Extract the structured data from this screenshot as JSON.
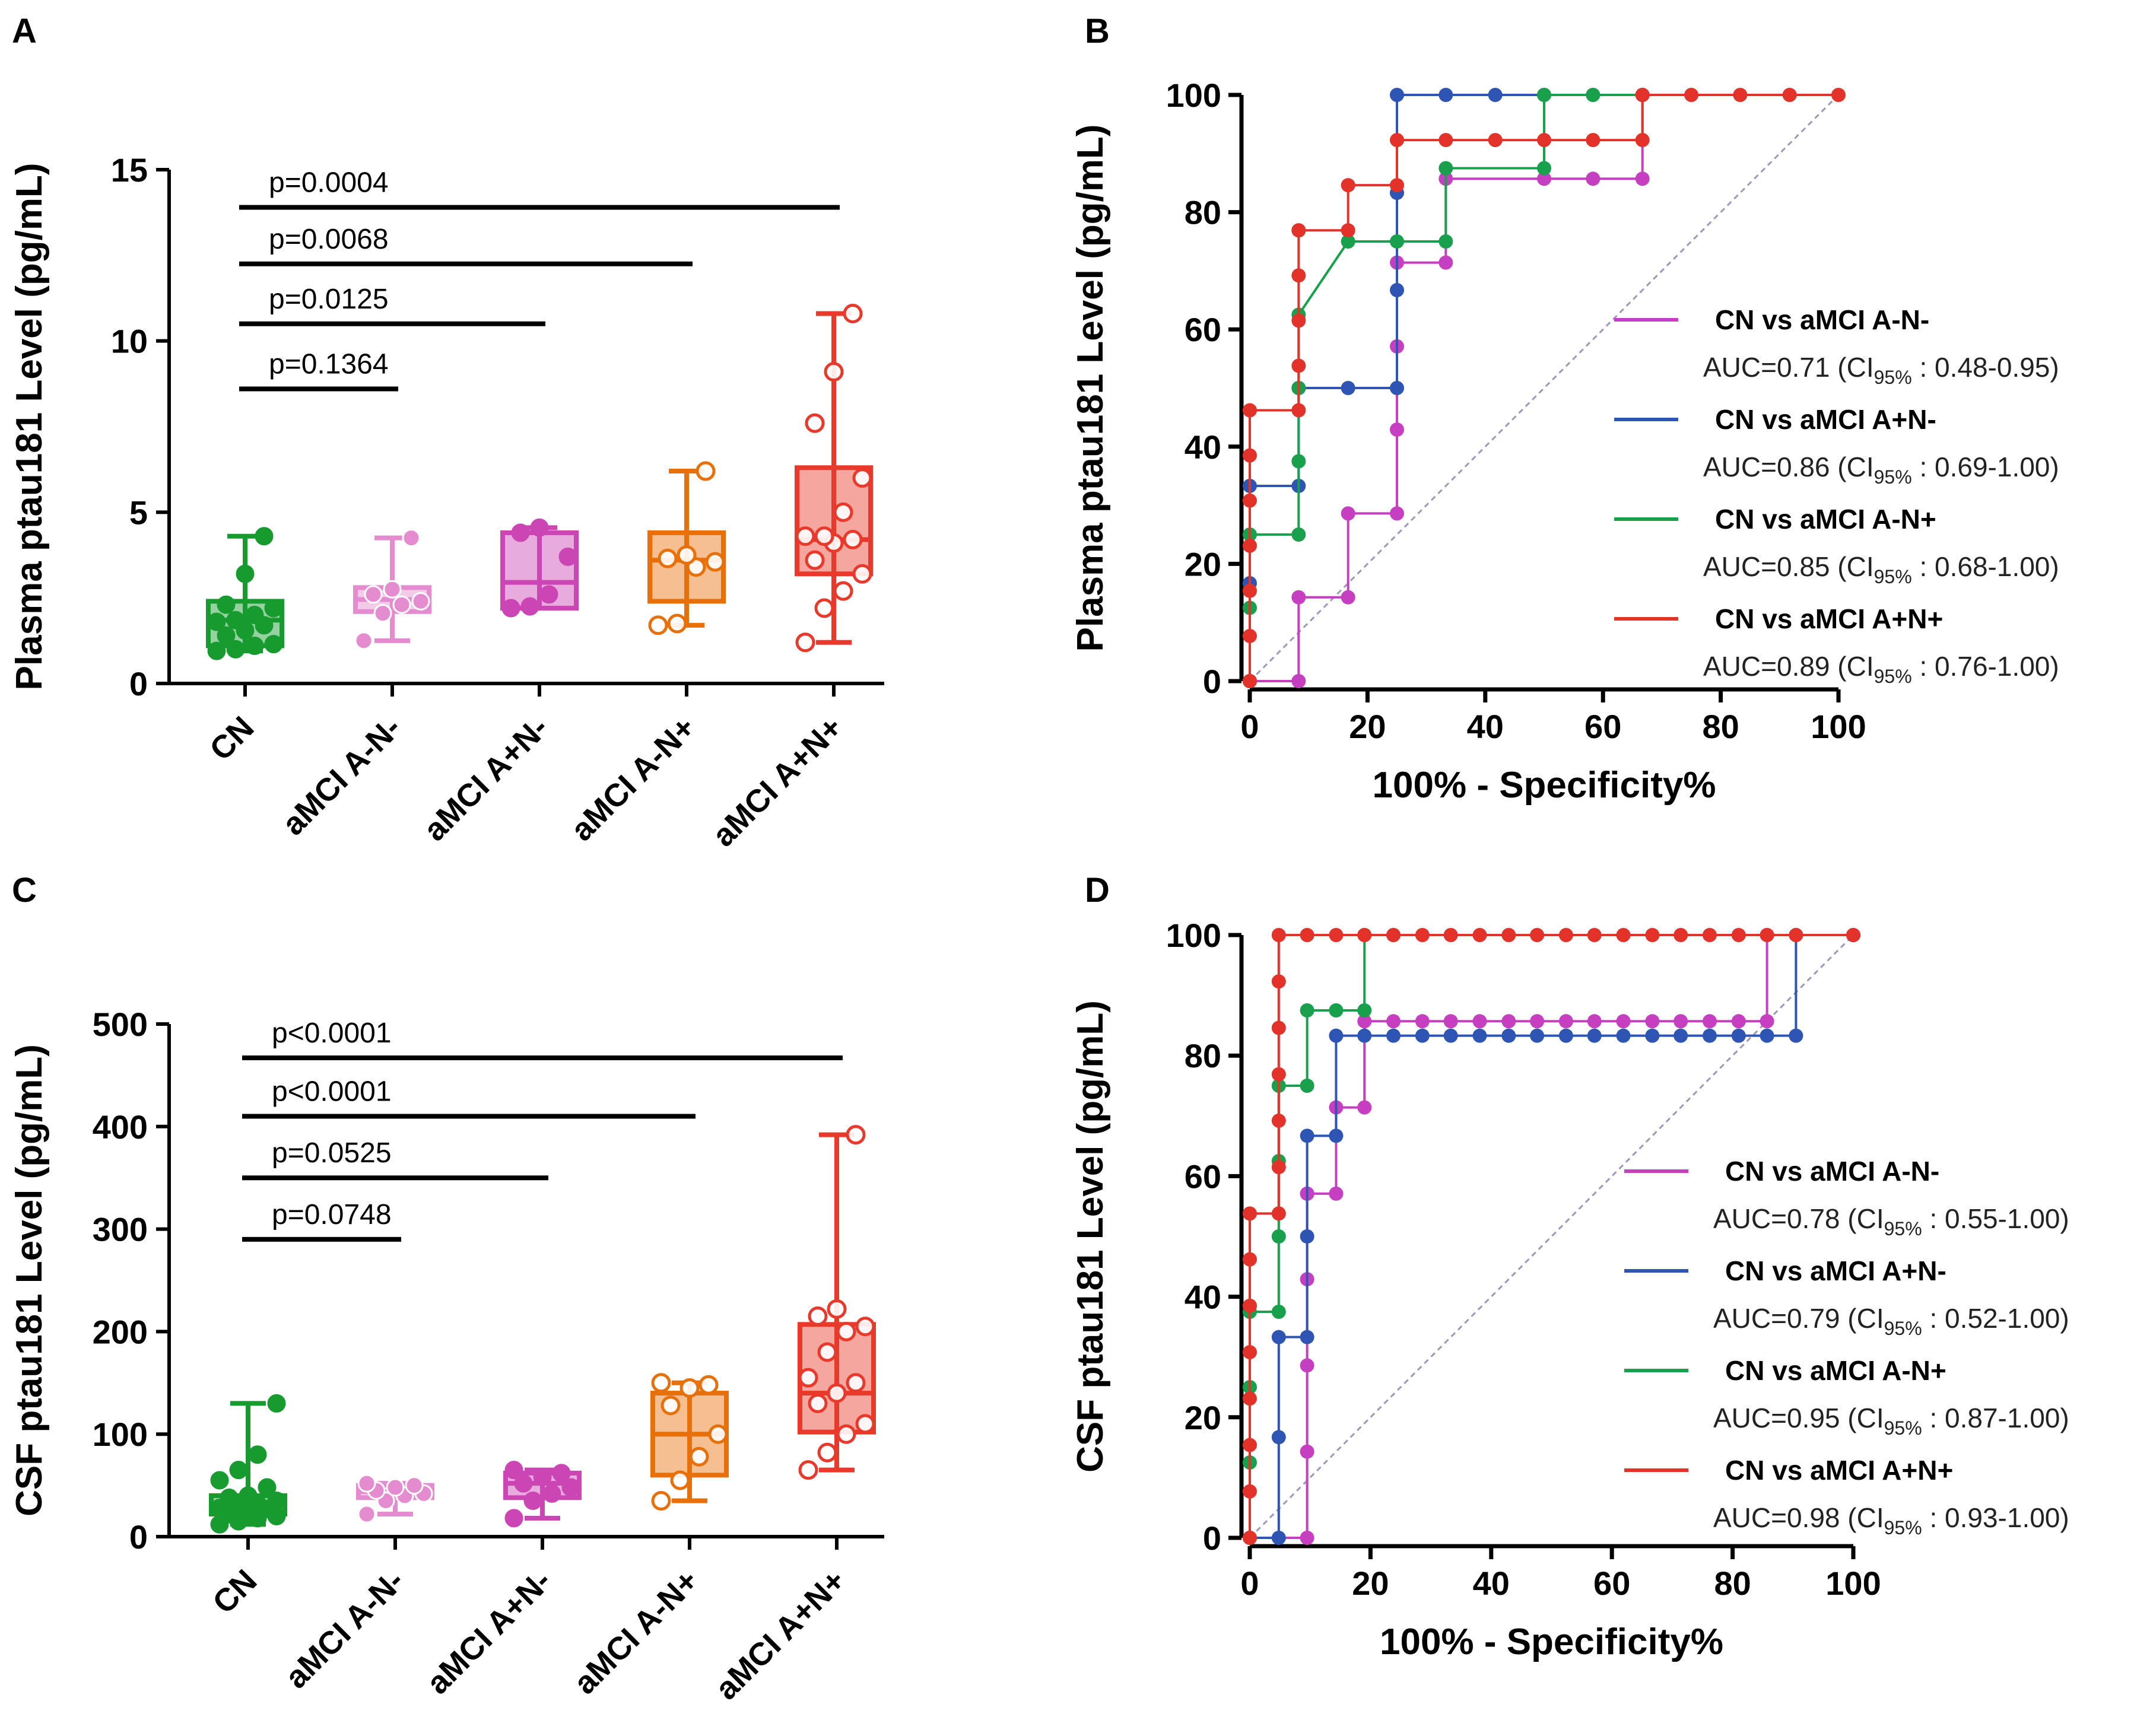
{
  "panel_labels": [
    "A",
    "B",
    "C",
    "D"
  ],
  "colors": {
    "CN": "#179b2f",
    "aMCI A-N-": "#e58bcf",
    "aMCI A+N-": "#cc45b4",
    "aMCI A-N+": "#e8700a",
    "aMCI A+N+": "#e8392b",
    "roc_A-N-": "#c53fc0",
    "roc_A+N-": "#2e55b3",
    "roc_A-N+": "#18a04c",
    "roc_A+N+": "#e3322a",
    "diagonal": "#9a9ab8"
  },
  "chart_data": [
    {
      "panel": "A",
      "type": "box",
      "ylabel": "Plasma ptau181 Level (pg/mL)",
      "yticks": [
        0,
        5,
        10,
        15
      ],
      "ylim": [
        0,
        15
      ],
      "categories": [
        "CN",
        "aMCI A-N-",
        "aMCI A+N-",
        "aMCI A-N+",
        "aMCI A+N+"
      ],
      "boxes": [
        {
          "min": 0.95,
          "q1": 1.1,
          "median": 1.85,
          "q3": 2.4,
          "max": 4.3,
          "points": [
            0.95,
            1.0,
            1.1,
            1.15,
            1.4,
            1.55,
            1.7,
            1.8,
            1.85,
            2.0,
            2.2,
            2.3,
            3.2,
            4.3
          ]
        },
        {
          "min": 1.25,
          "q1": 2.1,
          "median": 2.45,
          "q3": 2.8,
          "max": 4.25,
          "points": [
            1.25,
            2.05,
            2.3,
            2.4,
            2.6,
            2.75,
            4.25
          ]
        },
        {
          "min": 2.2,
          "q1": 2.2,
          "median": 2.95,
          "q3": 4.4,
          "max": 4.55,
          "points": [
            2.2,
            2.25,
            2.6,
            3.7,
            4.4,
            4.55
          ]
        },
        {
          "min": 1.7,
          "q1": 2.4,
          "median": 3.6,
          "q3": 4.4,
          "max": 6.2,
          "points": [
            1.7,
            1.75,
            3.4,
            3.55,
            3.65,
            3.75,
            6.2
          ]
        },
        {
          "min": 1.2,
          "q1": 3.2,
          "median": 4.2,
          "q3": 6.3,
          "max": 10.8,
          "points": [
            1.2,
            2.2,
            2.7,
            3.2,
            3.6,
            4.1,
            4.2,
            4.3,
            4.3,
            5.0,
            6.0,
            7.6,
            9.1,
            10.8
          ]
        }
      ],
      "brackets": [
        {
          "label": "p=0.0004",
          "from": 0,
          "to": 4,
          "y": 13.9
        },
        {
          "label": "p=0.0068",
          "from": 0,
          "to": 3,
          "y": 12.25
        },
        {
          "label": "p=0.0125",
          "from": 0,
          "to": 2,
          "y": 10.5
        },
        {
          "label": "p=0.1364",
          "from": 0,
          "to": 1,
          "y": 8.6
        }
      ]
    },
    {
      "panel": "B",
      "type": "line",
      "ylabel": "Plasma ptau181 Level (pg/mL)",
      "xlabel": "100% - Specificity%",
      "xticks": [
        0,
        20,
        40,
        60,
        80,
        100
      ],
      "yticks": [
        0,
        20,
        40,
        60,
        80,
        100
      ],
      "xlim": [
        0,
        100
      ],
      "ylim": [
        0,
        100
      ],
      "series": [
        {
          "name": "CN vs aMCI A-N-",
          "auc": "AUC=0.71 (CI",
          "ci": ": 0.48-0.95)",
          "x": [
            0,
            0,
            8.3,
            8.3,
            16.7,
            16.7,
            25,
            25,
            25,
            25,
            33.3,
            33.3,
            50,
            58.3,
            66.7,
            66.7
          ],
          "y": [
            0,
            0,
            0,
            14.3,
            14.3,
            28.6,
            28.6,
            42.9,
            57.1,
            71.4,
            71.4,
            85.7,
            85.7,
            85.7,
            85.7,
            100
          ]
        },
        {
          "name": "CN vs aMCI A+N-",
          "auc": "AUC=0.86 (CI",
          "ci": ": 0.69-1.00)",
          "x": [
            0,
            0,
            0,
            8.3,
            8.3,
            16.7,
            25,
            25,
            25,
            25,
            33.3,
            41.7,
            50,
            58.3,
            66.7
          ],
          "y": [
            0,
            16.7,
            33.3,
            33.3,
            50,
            50,
            50,
            66.7,
            83.3,
            100,
            100,
            100,
            100,
            100,
            100
          ]
        },
        {
          "name": "CN vs aMCI A-N+",
          "auc": "AUC=0.85 (CI",
          "ci": ": 0.68-1.00)",
          "x": [
            0,
            0,
            0,
            8.3,
            8.3,
            8.3,
            8.3,
            16.7,
            25,
            33.3,
            33.3,
            50,
            50,
            58.3,
            66.7
          ],
          "y": [
            0,
            12.5,
            25,
            25,
            37.5,
            50,
            62.5,
            75,
            75,
            75,
            87.5,
            87.5,
            100,
            100,
            100
          ]
        },
        {
          "name": "CN vs aMCI A+N+",
          "auc": "AUC=0.89 (CI",
          "ci": ": 0.76-1.00)",
          "x": [
            0,
            0,
            0,
            0,
            0,
            0,
            0,
            8.3,
            8.3,
            8.3,
            8.3,
            8.3,
            8.3,
            16.7,
            16.7,
            25,
            25,
            33.3,
            41.7,
            50,
            58.3,
            66.7,
            66.7,
            75,
            83.3,
            91.7,
            100
          ],
          "y": [
            0,
            7.7,
            15.4,
            23.1,
            30.8,
            38.5,
            46.2,
            46.2,
            53.8,
            61.5,
            69.2,
            76.9,
            76.9,
            76.9,
            84.6,
            84.6,
            92.3,
            92.3,
            92.3,
            92.3,
            92.3,
            92.3,
            100,
            100,
            100,
            100,
            100
          ]
        }
      ]
    },
    {
      "panel": "C",
      "type": "box",
      "ylabel": "CSF ptau181 Level (pg/mL)",
      "yticks": [
        0,
        100,
        200,
        300,
        400,
        500
      ],
      "ylim": [
        0,
        500
      ],
      "categories": [
        "CN",
        "aMCI A-N-",
        "aMCI A+N-",
        "aMCI A-N+",
        "aMCI A+N+"
      ],
      "boxes": [
        {
          "min": 12,
          "q1": 22,
          "median": 30,
          "q3": 40,
          "max": 130,
          "points": [
            12,
            15,
            18,
            20,
            22,
            25,
            27,
            28,
            30,
            32,
            35,
            38,
            40,
            48,
            55,
            65,
            80,
            130
          ]
        },
        {
          "min": 22,
          "q1": 38,
          "median": 44,
          "q3": 50,
          "max": 52,
          "points": [
            22,
            35,
            40,
            42,
            45,
            48,
            50,
            52
          ]
        },
        {
          "min": 18,
          "q1": 38,
          "median": 52,
          "q3": 62,
          "max": 65,
          "points": [
            18,
            35,
            42,
            48,
            52,
            58,
            62,
            65
          ]
        },
        {
          "min": 35,
          "q1": 60,
          "median": 100,
          "q3": 140,
          "max": 150,
          "points": [
            35,
            55,
            78,
            100,
            128,
            145,
            148,
            150
          ]
        },
        {
          "min": 65,
          "q1": 102,
          "median": 140,
          "q3": 207,
          "max": 392,
          "points": [
            65,
            82,
            100,
            110,
            130,
            140,
            150,
            155,
            180,
            200,
            205,
            215,
            222,
            392
          ]
        }
      ],
      "brackets": [
        {
          "label": "p<0.0001",
          "from": 0,
          "to": 4,
          "y": 467
        },
        {
          "label": "p<0.0001",
          "from": 0,
          "to": 3,
          "y": 410
        },
        {
          "label": "p=0.0525",
          "from": 0,
          "to": 2,
          "y": 350
        },
        {
          "label": "p=0.0748",
          "from": 0,
          "to": 1,
          "y": 290
        }
      ]
    },
    {
      "panel": "D",
      "type": "line",
      "ylabel": "CSF ptau181 Level (pg/mL)",
      "xlabel": "100% - Specificity%",
      "xticks": [
        0,
        20,
        40,
        60,
        80,
        100
      ],
      "yticks": [
        0,
        20,
        40,
        60,
        80,
        100
      ],
      "xlim": [
        0,
        100
      ],
      "ylim": [
        0,
        100
      ],
      "series": [
        {
          "name": "CN vs aMCI A-N-",
          "auc": "AUC=0.78 (CI",
          "ci": ": 0.55-1.00)",
          "x": [
            0,
            9.5,
            9.5,
            9.5,
            9.5,
            9.5,
            9.5,
            14.3,
            14.3,
            19,
            19,
            23.8,
            28.6,
            33.3,
            38.1,
            42.9,
            47.6,
            52.4,
            57.1,
            61.9,
            66.7,
            71.4,
            76.2,
            81,
            85.7,
            85.7,
            100
          ],
          "y": [
            0,
            0,
            14.3,
            28.6,
            42.9,
            57.1,
            57.1,
            57.1,
            71.4,
            71.4,
            85.7,
            85.7,
            85.7,
            85.7,
            85.7,
            85.7,
            85.7,
            85.7,
            85.7,
            85.7,
            85.7,
            85.7,
            85.7,
            85.7,
            85.7,
            100,
            100
          ]
        },
        {
          "name": "CN vs aMCI A+N-",
          "auc": "AUC=0.79 (CI",
          "ci": ": 0.52-1.00)",
          "x": [
            0,
            4.8,
            4.8,
            4.8,
            9.5,
            9.5,
            9.5,
            14.3,
            14.3,
            19,
            23.8,
            28.6,
            33.3,
            38.1,
            42.9,
            47.6,
            52.4,
            57.1,
            61.9,
            66.7,
            71.4,
            76.2,
            81,
            85.7,
            90.5,
            90.5,
            100
          ],
          "y": [
            0,
            0,
            16.7,
            33.3,
            33.3,
            50,
            66.7,
            66.7,
            83.3,
            83.3,
            83.3,
            83.3,
            83.3,
            83.3,
            83.3,
            83.3,
            83.3,
            83.3,
            83.3,
            83.3,
            83.3,
            83.3,
            83.3,
            83.3,
            83.3,
            100,
            100
          ]
        },
        {
          "name": "CN vs aMCI A-N+",
          "auc": "AUC=0.95 (CI",
          "ci": ": 0.87-1.00)",
          "x": [
            0,
            0,
            0,
            0,
            4.8,
            4.8,
            4.8,
            4.8,
            9.5,
            9.5,
            14.3,
            19,
            19,
            23.8
          ],
          "y": [
            0,
            12.5,
            25,
            37.5,
            37.5,
            50,
            62.5,
            75,
            75,
            87.5,
            87.5,
            87.5,
            100,
            100
          ]
        },
        {
          "name": "CN vs aMCI A+N+",
          "auc": "AUC=0.98 (CI",
          "ci": ": 0.93-1.00)",
          "x": [
            0,
            0,
            0,
            0,
            0,
            0,
            0,
            0,
            4.8,
            4.8,
            4.8,
            4.8,
            4.8,
            4.8,
            4.8,
            9.5,
            14.3,
            19,
            23.8,
            28.6,
            33.3,
            38.1,
            42.9,
            47.6,
            52.4,
            57.1,
            61.9,
            66.7,
            71.4,
            76.2,
            81,
            85.7,
            90.5,
            100
          ],
          "y": [
            0,
            7.7,
            15.4,
            23.1,
            30.8,
            38.5,
            46.2,
            53.8,
            53.8,
            61.5,
            69.2,
            76.9,
            84.6,
            92.3,
            100,
            100,
            100,
            100,
            100,
            100,
            100,
            100,
            100,
            100,
            100,
            100,
            100,
            100,
            100,
            100,
            100,
            100,
            100,
            100
          ]
        }
      ]
    }
  ]
}
